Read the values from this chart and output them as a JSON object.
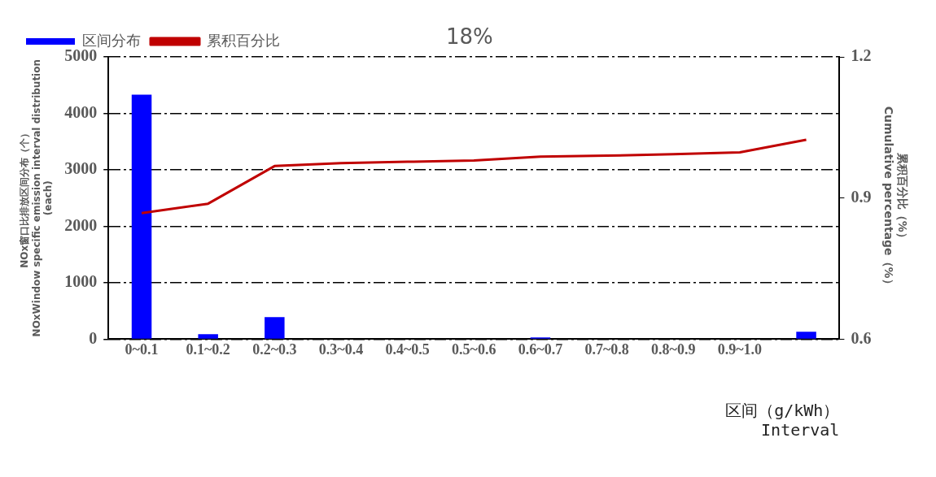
{
  "chart_data": {
    "type": "bar",
    "xlabel": "区间（g/kWh）\nInterval",
    "ylabel": "NOx窗口比排放区间分布（个）\nNOxWindow specific emission interval distribution\n(each)",
    "y2label": "累积百分比（%）\nCumulative percentage（%）",
    "categories": [
      "0~0.1",
      "0.1~0.2",
      "0.2~0.3",
      "0.3~0.4",
      "0.4~0.5",
      "0.5~0.6",
      "0.6~0.7",
      "0.7~0.8",
      "0.8~0.9",
      "0.9~1.0",
      null
    ],
    "series": [
      {
        "name": "区间分布",
        "color": "#0000ff",
        "values": [
          4330,
          90,
          390,
          10,
          0,
          0,
          30,
          0,
          10,
          10,
          130
        ]
      },
      {
        "name": "累积百分比",
        "type": "line",
        "axis": "y2",
        "color": "#c00000",
        "values": [
          0.868,
          0.888,
          0.968,
          0.974,
          0.977,
          0.98,
          0.988,
          0.99,
          0.993,
          0.997,
          1.024
        ]
      }
    ],
    "ylim": [
      0,
      5000
    ],
    "yticks": [
      0,
      1000,
      2000,
      3000,
      4000,
      5000
    ],
    "y2lim": [
      0.6,
      1.2
    ],
    "y2ticks": [
      0.6,
      0.9,
      1.2
    ],
    "grid": "y",
    "legend": "top left",
    "annotations": [
      "18%"
    ]
  }
}
